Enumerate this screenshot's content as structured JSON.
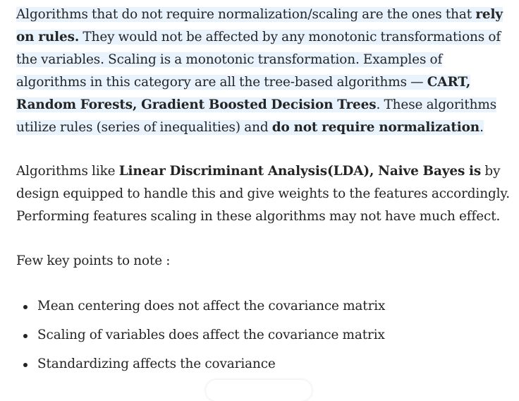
{
  "paragraph1": {
    "t1": "Algorithms that do not require normalization/scaling are the ones that ",
    "b1": "rely on rules.",
    "t2": " They would not be affected by any monotonic transformations of the variables. Scaling is a monotonic transformation. Examples of algorithms in this category are all the tree-based algorithms — ",
    "b2": "CART, Random Forests, Gradient Boosted Decision Trees",
    "t3": ". These algorithms utilize rules (series of inequalities) and ",
    "b3": "do not require normalization",
    "t4": "."
  },
  "paragraph2": {
    "t1": "Algorithms like ",
    "b1": "Linear Discriminant Analysis(LDA), Naive Bayes is",
    "t2": " by design equipped to handle this and give weights to the features accordingly. Performing features scaling in these algorithms may not have much effect."
  },
  "paragraph3": {
    "text": "Few key points to note :"
  },
  "key_points": [
    "Mean centering does not affect the covariance matrix",
    "Scaling of variables does affect the covariance matrix",
    "Standardizing affects the covariance"
  ],
  "colors": {
    "text": "#242424",
    "highlight": "#e8f3fd"
  }
}
